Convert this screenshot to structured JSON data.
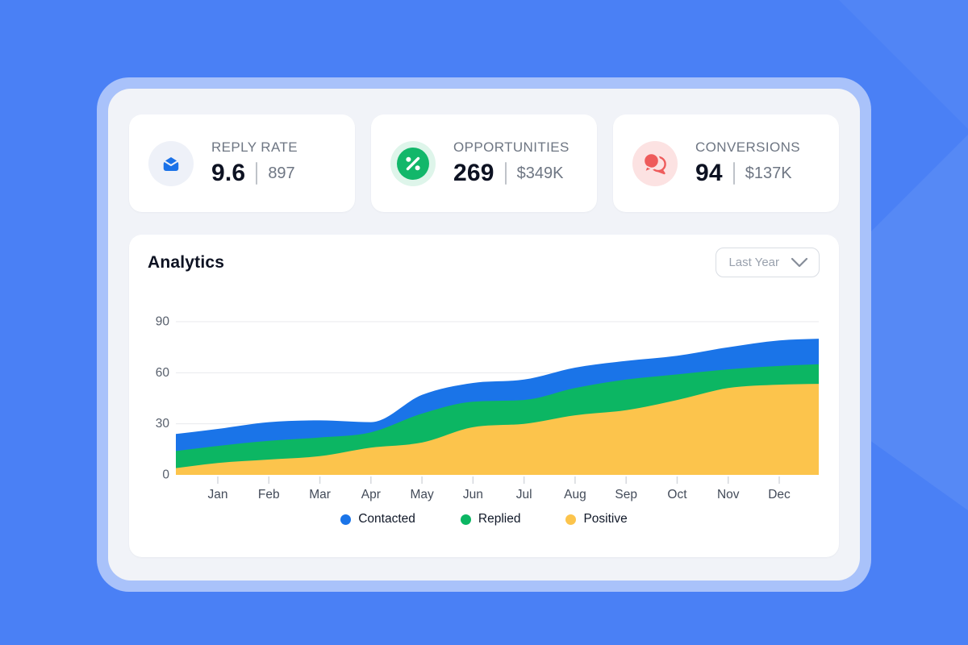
{
  "stats": [
    {
      "label": "REPLY RATE",
      "value": "9.6",
      "secondary": "897",
      "icon": "envelope-icon",
      "icon_color": "#1b72e8",
      "icon_bg": "#eef1f8"
    },
    {
      "label": "OPPORTUNITIES",
      "value": "269",
      "secondary": "$349K",
      "icon": "percent-icon",
      "icon_color": "#12b76a",
      "icon_bg": "#def5ea"
    },
    {
      "label": "CONVERSIONS",
      "value": "94",
      "secondary": "$137K",
      "icon": "chat-icon",
      "icon_color": "#ee5b5b",
      "icon_bg": "#fce2e2"
    }
  ],
  "analytics": {
    "title": "Analytics",
    "range_selector": {
      "value": "Last Year"
    }
  },
  "chart_data": {
    "type": "area",
    "stacked": true,
    "title": "Analytics",
    "x": [
      "Jan",
      "Feb",
      "Mar",
      "Apr",
      "May",
      "Jun",
      "Jul",
      "Aug",
      "Sep",
      "Oct",
      "Nov",
      "Dec"
    ],
    "series": [
      {
        "name": "Contacted",
        "color": "#1a74e8",
        "values": [
          10,
          11,
          10,
          6,
          11,
          11,
          12,
          12,
          11,
          11,
          13,
          15
        ]
      },
      {
        "name": "Replied",
        "color": "#0cb663",
        "values": [
          10,
          11,
          11,
          9,
          17,
          15,
          14,
          16,
          18,
          15,
          11,
          11
        ]
      },
      {
        "name": "Positive",
        "color": "#fcc44c",
        "values": [
          7,
          9,
          11,
          16,
          19,
          28,
          30,
          35,
          38,
          44,
          51,
          53
        ]
      }
    ],
    "edges": {
      "left": {
        "Contacted": 10,
        "Replied": 10,
        "Positive": 4
      },
      "right": {
        "Contacted": 15,
        "Replied": 11.5,
        "Positive": 53.5
      }
    },
    "ylim": [
      0,
      90
    ],
    "yticks": [
      0,
      30,
      60,
      90
    ],
    "grid": true,
    "legend_position": "bottom"
  },
  "colors": {
    "background": "#4a80f5",
    "frame_ring": "#a9c2fa",
    "panel": "#f1f3f8",
    "card": "#ffffff",
    "text_primary": "#0d1222",
    "text_secondary": "#6e7683",
    "gridline": "#e8eaed",
    "axis_label": "#575f6c"
  }
}
